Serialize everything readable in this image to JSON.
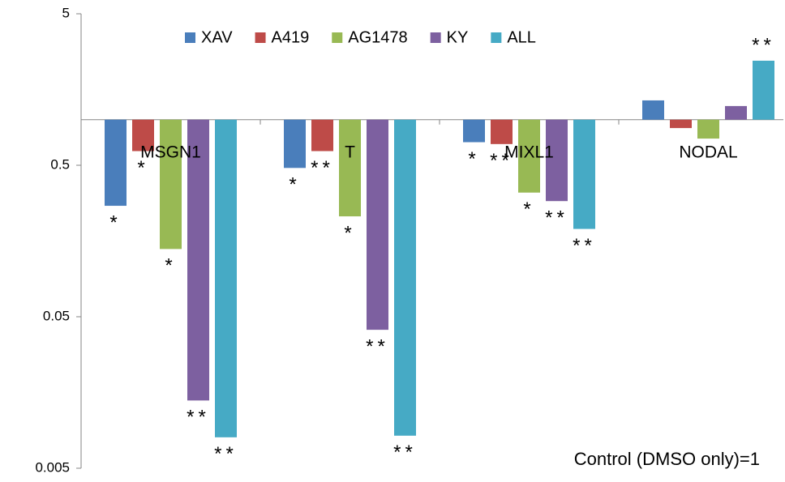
{
  "chart_data": {
    "type": "bar",
    "log_scale": true,
    "bar_base": 1,
    "categories": [
      "MSGN1",
      "T",
      "MIXL1",
      "NODAL"
    ],
    "series": [
      {
        "name": "XAV",
        "color": "#4a7ebb",
        "values": [
          0.27,
          0.48,
          0.71,
          1.34
        ],
        "significance": [
          "*",
          "*",
          "*",
          null
        ]
      },
      {
        "name": "A419",
        "color": "#be4b48",
        "values": [
          0.62,
          0.62,
          0.69,
          0.88
        ],
        "significance": [
          "*",
          "**",
          "**",
          null
        ]
      },
      {
        "name": "AG1478",
        "color": "#98b954",
        "values": [
          0.14,
          0.23,
          0.33,
          0.75
        ],
        "significance": [
          "*",
          "*",
          "*",
          null
        ]
      },
      {
        "name": "KY",
        "color": "#7d60a0",
        "values": [
          0.014,
          0.041,
          0.29,
          1.23
        ],
        "significance": [
          "**",
          "**",
          "**",
          null
        ]
      },
      {
        "name": "ALL",
        "color": "#46aac5",
        "values": [
          0.008,
          0.0082,
          0.19,
          2.45
        ],
        "significance": [
          "**",
          "**",
          "**",
          "**"
        ]
      }
    ],
    "ylim": [
      0.005,
      5
    ],
    "yticks": [
      0.005,
      0.05,
      0.5,
      5
    ],
    "annotation": "Control (DMSO only)=1",
    "legend": "top"
  }
}
